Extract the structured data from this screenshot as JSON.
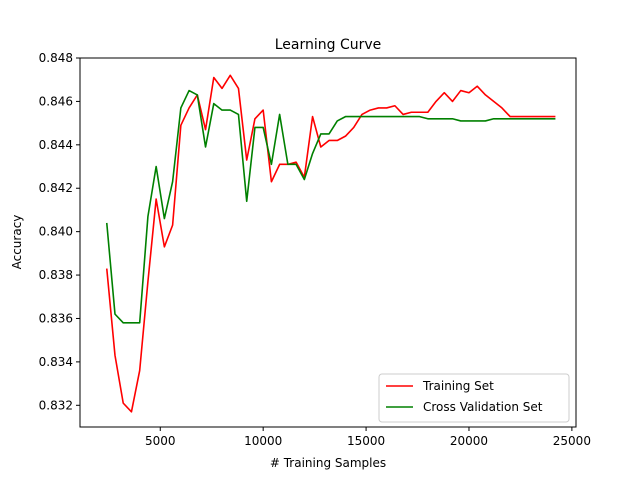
{
  "chart_data": {
    "type": "line",
    "title": "Learning Curve",
    "xlabel": "# Training Samples",
    "ylabel": "Accuracy",
    "xlim": [
      1100,
      25200
    ],
    "ylim": [
      0.831,
      0.848
    ],
    "xticks": [
      5000,
      10000,
      15000,
      20000,
      25000
    ],
    "xtick_labels": [
      "5000",
      "10000",
      "15000",
      "20000",
      "25000"
    ],
    "yticks": [
      0.832,
      0.834,
      0.836,
      0.838,
      0.84,
      0.842,
      0.844,
      0.846,
      0.848
    ],
    "ytick_labels": [
      "0.832",
      "0.834",
      "0.836",
      "0.838",
      "0.840",
      "0.842",
      "0.844",
      "0.846",
      "0.848"
    ],
    "grid": false,
    "legend_position": "lower-right",
    "x": [
      2400,
      2800,
      3200,
      3600,
      4000,
      4400,
      4800,
      5200,
      5600,
      6000,
      6400,
      6800,
      7200,
      7600,
      8000,
      8400,
      8800,
      9200,
      9600,
      10000,
      10400,
      10800,
      11200,
      11600,
      12000,
      12400,
      12800,
      13200,
      13600,
      14000,
      14400,
      14800,
      15200,
      15600,
      16000,
      16400,
      16800,
      17200,
      17600,
      18000,
      18400,
      18800,
      19200,
      19600,
      20000,
      20400,
      20800,
      21200,
      21600,
      22000,
      22400,
      22800,
      23200,
      23600,
      24000,
      24200
    ],
    "series": [
      {
        "name": "Training Set",
        "color": "#ff0000",
        "values": [
          0.8383,
          0.8343,
          0.8321,
          0.8317,
          0.8336,
          0.8377,
          0.8415,
          0.8393,
          0.8403,
          0.8449,
          0.8457,
          0.8463,
          0.8447,
          0.8471,
          0.8466,
          0.8472,
          0.8466,
          0.8433,
          0.8452,
          0.8456,
          0.8423,
          0.8431,
          0.8431,
          0.8432,
          0.8425,
          0.8453,
          0.8439,
          0.8442,
          0.8442,
          0.8444,
          0.8448,
          0.8454,
          0.8456,
          0.8457,
          0.8457,
          0.8458,
          0.8454,
          0.8455,
          0.8455,
          0.8455,
          0.846,
          0.8464,
          0.846,
          0.8465,
          0.8464,
          0.8467,
          0.8463,
          0.846,
          0.8457,
          0.8453,
          0.8453,
          0.8453,
          0.8453,
          0.8453,
          0.8453,
          0.8453
        ]
      },
      {
        "name": "Cross Validation Set",
        "color": "#008000",
        "values": [
          0.8404,
          0.8362,
          0.8358,
          0.8358,
          0.8358,
          0.8407,
          0.843,
          0.8406,
          0.8423,
          0.8457,
          0.8465,
          0.8463,
          0.8439,
          0.8459,
          0.8456,
          0.8456,
          0.8454,
          0.8414,
          0.8448,
          0.8448,
          0.8431,
          0.8454,
          0.8431,
          0.8431,
          0.8424,
          0.8436,
          0.8445,
          0.8445,
          0.8451,
          0.8453,
          0.8453,
          0.8453,
          0.8453,
          0.8453,
          0.8453,
          0.8453,
          0.8453,
          0.8453,
          0.8453,
          0.8452,
          0.8452,
          0.8452,
          0.8452,
          0.8451,
          0.8451,
          0.8451,
          0.8451,
          0.8452,
          0.8452,
          0.8452,
          0.8452,
          0.8452,
          0.8452,
          0.8452,
          0.8452,
          0.8452
        ]
      }
    ]
  }
}
